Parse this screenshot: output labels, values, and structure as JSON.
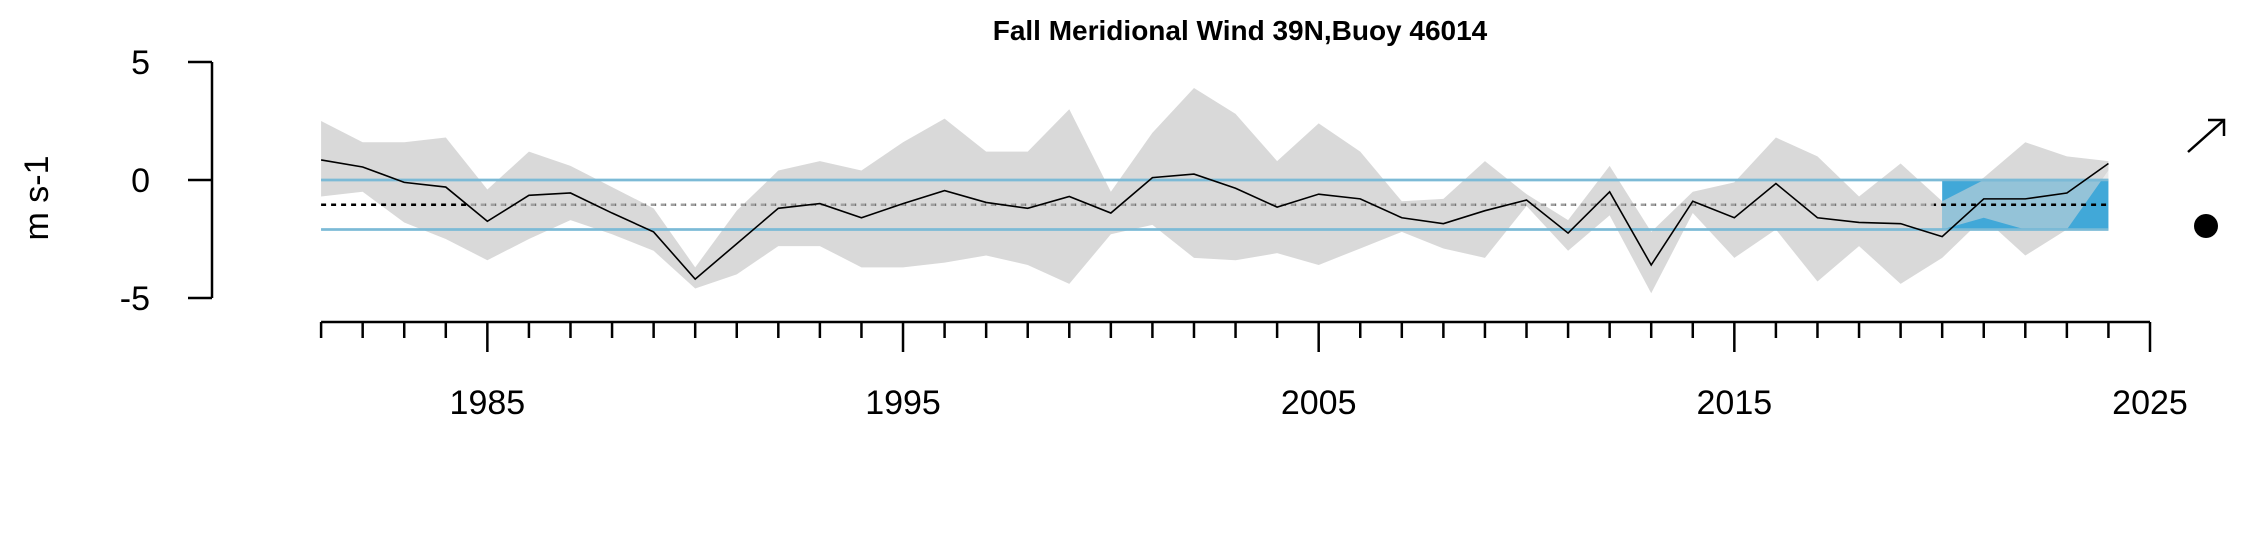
{
  "chart_data": {
    "type": "line",
    "title": "Fall Meridional Wind 39N,Buoy 46014",
    "ylabel": "m s-1",
    "xlabel": "",
    "xlim": [
      1980.3,
      2025
    ],
    "ylim": [
      -5,
      5
    ],
    "x_ticks": [
      1985,
      1995,
      2005,
      2015,
      2025
    ],
    "x_tick_labels": [
      "1985",
      "1995",
      "2005",
      "2015",
      "2025"
    ],
    "y_ticks": [
      5,
      0,
      -5
    ],
    "y_tick_labels": [
      "5",
      "0",
      "-5"
    ],
    "x": [
      1981,
      1982,
      1983,
      1984,
      1985,
      1986,
      1987,
      1988,
      1989,
      1990,
      1991,
      1992,
      1993,
      1994,
      1995,
      1996,
      1997,
      1998,
      1999,
      2000,
      2001,
      2002,
      2003,
      2004,
      2005,
      2006,
      2007,
      2008,
      2009,
      2010,
      2011,
      2012,
      2013,
      2014,
      2015,
      2016,
      2017,
      2018,
      2019,
      2020,
      2021,
      2022,
      2023,
      2024
    ],
    "series": [
      {
        "role": "mean",
        "values": [
          0.85,
          0.55,
          -0.1,
          -0.3,
          -1.75,
          -0.65,
          -0.55,
          -1.4,
          -2.2,
          -4.2,
          -2.7,
          -1.2,
          -1.0,
          -1.6,
          -1.0,
          -0.45,
          -0.95,
          -1.2,
          -0.7,
          -1.4,
          0.1,
          0.25,
          -0.35,
          -1.15,
          -0.6,
          -0.8,
          -1.6,
          -1.85,
          -1.3,
          -0.85,
          -2.25,
          -0.5,
          -3.6,
          -0.9,
          -1.6,
          -0.15,
          -1.6,
          -1.8,
          -1.85,
          -2.4,
          -0.8,
          -0.8,
          -0.55,
          0.7
        ]
      },
      {
        "role": "band_upper",
        "values": [
          2.5,
          1.6,
          1.6,
          1.8,
          -0.4,
          1.2,
          0.6,
          -0.3,
          -1.2,
          -3.7,
          -1.3,
          0.4,
          0.8,
          0.4,
          1.6,
          2.6,
          1.2,
          1.2,
          3.0,
          -0.5,
          2.0,
          3.9,
          2.8,
          0.8,
          2.4,
          1.2,
          -0.9,
          -0.8,
          0.8,
          -0.6,
          -1.7,
          0.6,
          -2.2,
          -0.5,
          -0.1,
          1.8,
          1.0,
          -0.7,
          0.7,
          -0.9,
          0.1,
          1.6,
          1.0,
          0.8
        ]
      },
      {
        "role": "band_lower",
        "values": [
          -0.7,
          -0.5,
          -1.8,
          -2.5,
          -3.4,
          -2.5,
          -1.7,
          -2.3,
          -3.0,
          -4.6,
          -4.0,
          -2.8,
          -2.8,
          -3.7,
          -3.7,
          -3.5,
          -3.2,
          -3.6,
          -4.4,
          -2.3,
          -1.9,
          -3.3,
          -3.4,
          -3.1,
          -3.6,
          -2.9,
          -2.2,
          -2.9,
          -3.3,
          -1.1,
          -3.0,
          -1.5,
          -4.8,
          -1.4,
          -3.3,
          -2.1,
          -4.3,
          -2.8,
          -4.4,
          -3.3,
          -1.6,
          -3.2,
          -2.1,
          0.4
        ]
      }
    ],
    "reference_lines": {
      "mean_value": -1.05,
      "upper_value": 0.0,
      "lower_value": -2.1
    },
    "highlight_period": {
      "x_start": 2020,
      "x_end": 2024,
      "y_low": -2.1,
      "y_high": 0.0
    },
    "trend_indicator": {
      "recent_trend": "increasing",
      "recent_mean_vs_longterm": "within"
    },
    "colors": {
      "band": "#d9d9d9",
      "line": "#000000",
      "reference": "#3ba7d4",
      "reference_light": "#a8c8d8",
      "mean_dash_black": "#000000",
      "mean_dash_grey": "#a0a0a0",
      "highlight": "#41a8d8"
    },
    "grid": false,
    "legend": "none"
  }
}
